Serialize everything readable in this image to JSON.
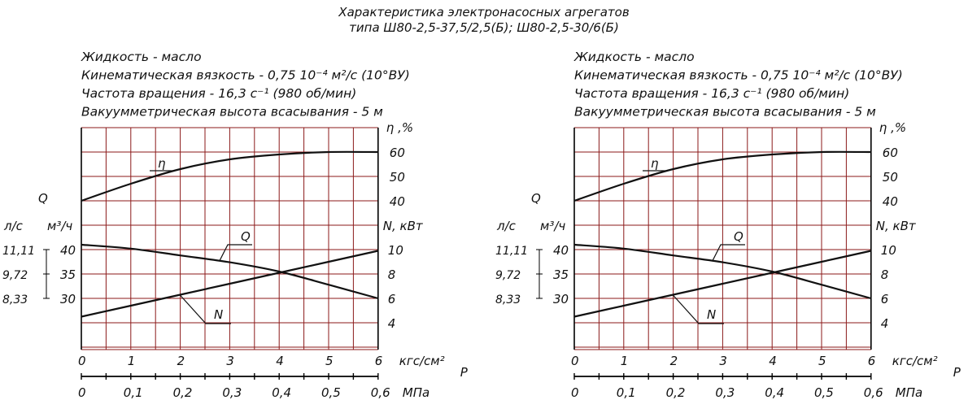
{
  "title": {
    "line1": "Характеристика электронасосных агрегатов",
    "line2": "типа Ш80-2,5-37,5/2,5(Б); Ш80-2,5-30/6(Б)"
  },
  "panels": [
    {
      "info": [
        "Жидкость - масло",
        "Кинематическая вязкость - 0,75  10⁻⁴ м²/с (10°ВУ)",
        "Частота вращения - 16,3 с⁻¹ (980 об/мин)",
        "Вакуумметрическая высота всасывания - 5 м"
      ]
    },
    {
      "info": [
        "Жидкость - масло",
        "Кинематическая вязкость - 0,75  10⁻⁴ м²/с (10°ВУ)",
        "Частота вращения - 16,3 с⁻¹ (980 об/мин)",
        "Вакуумметрическая высота всасывания - 5 м"
      ]
    }
  ],
  "colors": {
    "grid": "#8b1a1a",
    "curve": "#111111"
  },
  "chart_data": [
    {
      "type": "line",
      "x": [
        0,
        1,
        2,
        3,
        4,
        5,
        6
      ],
      "xlabel": "кгс/см²",
      "x_letter": "P",
      "xlim": [
        0,
        6
      ],
      "x_ticks": [
        "0",
        "1",
        "2",
        "3",
        "4",
        "5",
        "6"
      ],
      "x2_ticks": [
        "0",
        "0,1",
        "0,2",
        "0,3",
        "0,4",
        "0,5",
        "0,6"
      ],
      "x2label": "МПа",
      "q_axis_title": "Q",
      "q_units_ls": "л/с",
      "q_units_m3h": "м³/ч",
      "q_ticks_m3h": [
        "40",
        "35",
        "30"
      ],
      "q_ticks_ls": [
        "11,11",
        "9,72",
        "8,33"
      ],
      "eta_axis_label": "η ,%",
      "eta_ticks": [
        "60",
        "50",
        "40"
      ],
      "n_axis_label": "N, кВт",
      "n_ticks": [
        "10",
        "8",
        "6",
        "4"
      ],
      "grid": true,
      "series": [
        {
          "name": "η",
          "unit": "%",
          "y": [
            40,
            47,
            53,
            57,
            59,
            60,
            60
          ]
        },
        {
          "name": "Q",
          "unit": "м³/ч",
          "y": [
            41,
            40.2,
            38.8,
            37.4,
            35.5,
            32.8,
            30
          ]
        },
        {
          "name": "N",
          "unit": "кВт",
          "y": [
            4.5,
            5.4,
            6.3,
            7.2,
            8.1,
            9,
            9.9
          ]
        }
      ]
    },
    {
      "type": "line",
      "x": [
        0,
        1,
        2,
        3,
        4,
        5,
        6
      ],
      "xlabel": "кгс/см²",
      "x_letter": "P",
      "xlim": [
        0,
        6
      ],
      "x_ticks": [
        "0",
        "1",
        "2",
        "3",
        "4",
        "5",
        "6"
      ],
      "x2_ticks": [
        "0",
        "0,1",
        "0,2",
        "0,3",
        "0,4",
        "0,5",
        "0,6"
      ],
      "x2label": "МПа",
      "q_axis_title": "Q",
      "q_units_ls": "л/с",
      "q_units_m3h": "м³/ч",
      "q_ticks_m3h": [
        "40",
        "35",
        "30"
      ],
      "q_ticks_ls": [
        "11,11",
        "9,72",
        "8,33"
      ],
      "eta_axis_label": "η ,%",
      "eta_ticks": [
        "60",
        "50",
        "40"
      ],
      "n_axis_label": "N, кВт",
      "n_ticks": [
        "10",
        "8",
        "6",
        "4"
      ],
      "grid": true,
      "series": [
        {
          "name": "η",
          "unit": "%",
          "y": [
            40,
            47,
            53,
            57,
            59,
            60,
            60
          ]
        },
        {
          "name": "Q",
          "unit": "м³/ч",
          "y": [
            41,
            40.2,
            38.8,
            37.4,
            35.5,
            32.8,
            30
          ]
        },
        {
          "name": "N",
          "unit": "кВт",
          "y": [
            4.5,
            5.4,
            6.3,
            7.2,
            8.1,
            9,
            9.9
          ]
        }
      ]
    }
  ]
}
